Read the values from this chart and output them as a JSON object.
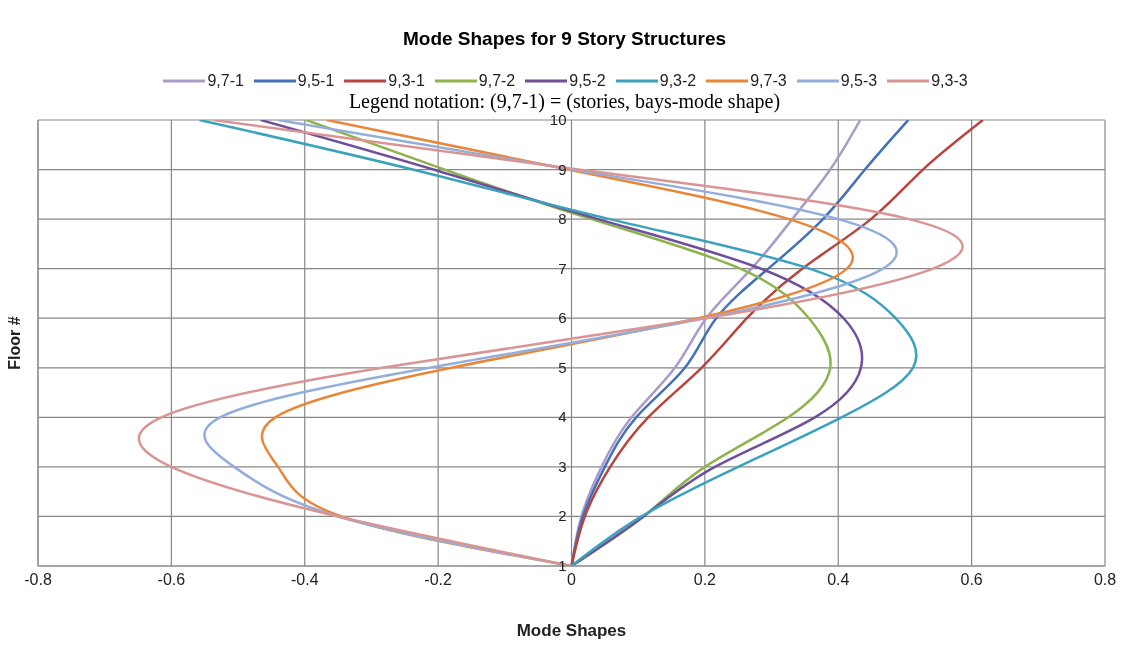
{
  "chart_data": {
    "type": "line",
    "title": "Mode Shapes for 9 Story Structures",
    "subtitle": "Legend notation: (9,7-1) = (stories, bays-mode shape)",
    "xlabel": "Mode Shapes",
    "ylabel": "Floor #",
    "series": [
      {
        "name": "9,7-1",
        "color": "#a99bc9",
        "x": [
          0,
          0.015,
          0.045,
          0.09,
          0.155,
          0.202,
          0.27,
          0.331,
          0.388,
          0.433
        ],
        "values": [
          1,
          2,
          3,
          4,
          5,
          6,
          7,
          8,
          9,
          10
        ]
      },
      {
        "name": "9,5-1",
        "color": "#4372b8",
        "x": [
          0,
          0.017,
          0.05,
          0.097,
          0.17,
          0.217,
          0.295,
          0.377,
          0.44,
          0.505
        ],
        "values": [
          1,
          2,
          3,
          4,
          5,
          6,
          7,
          8,
          9,
          10
        ]
      },
      {
        "name": "9,3-1",
        "color": "#b9433f",
        "x": [
          0,
          0.02,
          0.058,
          0.115,
          0.195,
          0.263,
          0.346,
          0.449,
          0.527,
          0.617
        ],
        "values": [
          1,
          2,
          3,
          4,
          5,
          6,
          7,
          8,
          9,
          10
        ]
      },
      {
        "name": "9,7-2",
        "color": "#8db44c",
        "x": [
          0,
          0.108,
          0.2,
          0.325,
          0.388,
          0.356,
          0.253,
          0.03,
          -0.19,
          -0.398
        ],
        "values": [
          1,
          2,
          3,
          4,
          5,
          6,
          7,
          8,
          9,
          10
        ]
      },
      {
        "name": "9,5-2",
        "color": "#6f4f9b",
        "x": [
          0,
          0.108,
          0.215,
          0.365,
          0.434,
          0.408,
          0.284,
          0.04,
          -0.207,
          -0.466
        ],
        "values": [
          1,
          2,
          3,
          4,
          5,
          6,
          7,
          8,
          9,
          10
        ]
      },
      {
        "name": "9,3-2",
        "color": "#3ba2bc",
        "x": [
          0,
          0.105,
          0.25,
          0.405,
          0.512,
          0.486,
          0.357,
          0.057,
          -0.238,
          -0.558
        ],
        "values": [
          1,
          2,
          3,
          4,
          5,
          6,
          7,
          8,
          9,
          10
        ]
      },
      {
        "name": "9,7-3",
        "color": "#e8873a",
        "x": [
          0,
          -0.345,
          -0.44,
          -0.444,
          -0.18,
          0.19,
          0.413,
          0.326,
          -0.005,
          -0.367
        ],
        "values": [
          1,
          2,
          3,
          4,
          5,
          6,
          7,
          8,
          9,
          10
        ]
      },
      {
        "name": "9,5-3",
        "color": "#93aedb",
        "x": [
          0,
          -0.35,
          -0.506,
          -0.527,
          -0.213,
          0.2,
          0.467,
          0.4,
          0,
          -0.44
        ],
        "values": [
          1,
          2,
          3,
          4,
          5,
          6,
          7,
          8,
          9,
          10
        ]
      },
      {
        "name": "9,3-3",
        "color": "#d99594",
        "x": [
          0,
          -0.35,
          -0.6,
          -0.615,
          -0.284,
          0.2,
          0.542,
          0.506,
          0.01,
          -0.537
        ],
        "values": [
          1,
          2,
          3,
          4,
          5,
          6,
          7,
          8,
          9,
          10
        ]
      }
    ],
    "xlim": [
      -0.8,
      0.8
    ],
    "xticks": [
      -0.8,
      -0.6,
      -0.4,
      -0.2,
      0,
      0.2,
      0.4,
      0.6,
      0.8
    ],
    "ylim": [
      1,
      10
    ],
    "yticks": [
      1,
      2,
      3,
      4,
      5,
      6,
      7,
      8,
      9,
      10
    ],
    "grid": true,
    "legend": "top",
    "marker": "none",
    "line_style": "solid"
  }
}
